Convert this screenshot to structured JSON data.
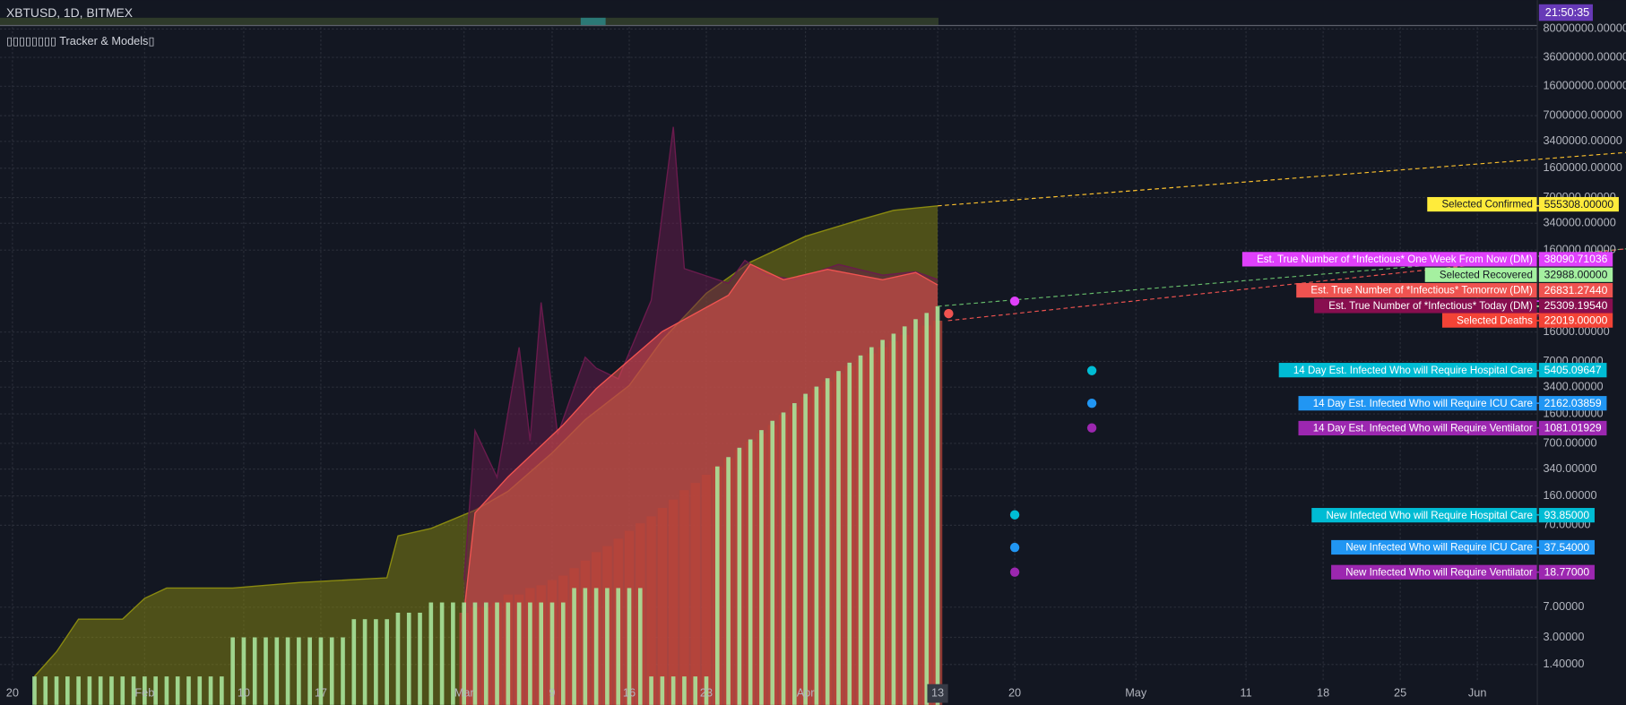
{
  "chart_data": {
    "type": "combo",
    "symbol": "XBTUSD, 1D, BITMEX",
    "title": "▯▯▯▯▯▯▯▯ Tracker & Models▯",
    "time": "21:50:35",
    "log_scale": true,
    "grid": true,
    "ylim": [
      0.45,
      180000000
    ],
    "yticks": [
      {
        "value": 1.4,
        "label": "1.40000"
      },
      {
        "value": 3,
        "label": "3.00000"
      },
      {
        "value": 7,
        "label": "7.00000"
      },
      {
        "value": 70,
        "label": "70.00000"
      },
      {
        "value": 160,
        "label": "160.00000"
      },
      {
        "value": 340,
        "label": "340.00000"
      },
      {
        "value": 700,
        "label": "700.00000"
      },
      {
        "value": 1600,
        "label": "1600.00000"
      },
      {
        "value": 3400,
        "label": "3400.00000"
      },
      {
        "value": 7000,
        "label": "7000.00000"
      },
      {
        "value": 16000,
        "label": "16000.00000"
      },
      {
        "value": 160000,
        "label": "160000.00000"
      },
      {
        "value": 340000,
        "label": "340000.00000"
      },
      {
        "value": 700000,
        "label": "700000.00000"
      },
      {
        "value": 1600000,
        "label": "1600000.00000"
      },
      {
        "value": 3400000,
        "label": "3400000.00000"
      },
      {
        "value": 7000000,
        "label": "7000000.00000"
      },
      {
        "value": 16000000,
        "label": "16000000.00000"
      },
      {
        "value": 36000000,
        "label": "36000000.00000"
      },
      {
        "value": 80000000,
        "label": "80000000.00000"
      }
    ],
    "xlim": [
      -1.13,
      138.4
    ],
    "xticks": [
      {
        "value": 0,
        "label": "20"
      },
      {
        "value": 12,
        "label": "Feb"
      },
      {
        "value": 21,
        "label": "10"
      },
      {
        "value": 28,
        "label": "17"
      },
      {
        "value": 41,
        "label": "Mar"
      },
      {
        "value": 49,
        "label": "9"
      },
      {
        "value": 56,
        "label": "16"
      },
      {
        "value": 63,
        "label": "23"
      },
      {
        "value": 72,
        "label": "Apr"
      },
      {
        "value": 84,
        "label": "13"
      },
      {
        "value": 91,
        "label": "20"
      },
      {
        "value": 102,
        "label": "May"
      },
      {
        "value": 112,
        "label": "11"
      },
      {
        "value": 119,
        "label": "18"
      },
      {
        "value": 126,
        "label": "25"
      },
      {
        "value": 133,
        "label": "Jun"
      }
    ],
    "series": [
      {
        "type": "area",
        "color": "#8a8a10",
        "x": [
          2,
          4,
          6,
          10,
          12,
          14,
          20,
          26,
          34,
          35,
          38,
          42,
          45,
          49,
          52,
          56,
          59,
          63,
          67,
          72,
          77,
          80,
          84
        ],
        "values": [
          1,
          2,
          5,
          5,
          9,
          12,
          12,
          14,
          16,
          52,
          64,
          107,
          182,
          535,
          1360,
          3560,
          12800,
          47500,
          114000,
          236000,
          377000,
          490000,
          555308
        ]
      },
      {
        "type": "area",
        "color": "#6a1b4d",
        "x": [
          41,
          42,
          44,
          46,
          47,
          48,
          49.5,
          52,
          53,
          55,
          58,
          60,
          61,
          65,
          66.5,
          68.5,
          71,
          75,
          79,
          82,
          84
        ],
        "values": [
          15,
          1000,
          270,
          10400,
          750,
          36800,
          900,
          7900,
          5800,
          4300,
          39000,
          5100000,
          95000,
          63000,
          120000,
          79000,
          70000,
          107000,
          79000,
          87000,
          70000
        ]
      },
      {
        "type": "area",
        "color": "#ef5350",
        "x": [
          41,
          42,
          45,
          50,
          53,
          59,
          65,
          67,
          70,
          74,
          79,
          82,
          84
        ],
        "values": [
          6,
          99,
          274,
          1175,
          3259,
          16200,
          44900,
          108000,
          69500,
          93100,
          69500,
          85300,
          60100
        ]
      },
      {
        "type": "bar",
        "color": "#b8443a",
        "x": [
          41,
          42,
          43,
          44,
          45,
          46,
          47,
          48,
          49,
          50,
          51,
          52,
          53,
          54,
          55,
          56,
          57,
          58,
          59,
          60,
          61,
          62,
          63,
          64,
          65,
          66,
          67,
          68,
          69,
          70,
          71,
          72,
          73,
          74,
          75,
          76,
          77,
          78,
          79,
          80,
          81,
          82,
          83,
          84
        ],
        "values": [
          6,
          7,
          7,
          8,
          10,
          10,
          12,
          13,
          15,
          17,
          21,
          26,
          33,
          39,
          48,
          60,
          74,
          90,
          114,
          144,
          188,
          230,
          290,
          366,
          462,
          584,
          738,
          931,
          1175,
          1575,
          1987,
          2583,
          3259,
          4000,
          5048,
          6196,
          7381,
          8778,
          10450,
          12449,
          14830,
          17178,
          19281,
          22019
        ]
      },
      {
        "type": "bar",
        "color": "#a8e39a",
        "x": [
          2,
          3,
          4,
          5,
          6,
          7,
          8,
          9,
          10,
          11,
          12,
          13,
          14,
          15,
          16,
          17,
          18,
          19,
          20,
          21,
          22,
          23,
          24,
          25,
          26,
          27,
          28,
          29,
          30,
          31,
          32,
          33,
          34,
          35,
          36,
          37,
          38,
          39,
          40,
          41,
          42,
          43,
          44,
          45,
          46,
          47,
          48,
          49,
          50,
          51,
          52,
          53,
          54,
          55,
          56,
          57,
          58,
          59,
          60,
          61,
          62,
          63,
          64,
          65,
          66,
          67,
          68,
          69,
          70,
          71,
          72,
          73,
          74,
          75,
          76,
          77,
          78,
          79,
          80,
          81,
          82,
          83,
          84
        ],
        "values": [
          1,
          1,
          1,
          1,
          1,
          1,
          1,
          1,
          1,
          1,
          1,
          1,
          1,
          1,
          1,
          1,
          1,
          1,
          3,
          3,
          3,
          3,
          3,
          3,
          3,
          3,
          3,
          3,
          3,
          5,
          5,
          5,
          5,
          6,
          6,
          6,
          8,
          8,
          8,
          8,
          8,
          8,
          8,
          8,
          8,
          8,
          8,
          8,
          8,
          12,
          12,
          12,
          12,
          12,
          12,
          12,
          1,
          1,
          1,
          1,
          1,
          1,
          366,
          476,
          619,
          782,
          1016,
          1321,
          1668,
          2168,
          2820,
          3452,
          4364,
          5347,
          6763,
          8282,
          10450,
          12827,
          15280,
          18746,
          22968,
          27353,
          32988
        ]
      }
    ],
    "labels": {
      "names": [
        "Selected Confirmed",
        "Est. True Number of *Infectious* One Week From Now (DM)",
        "Selected Recovered",
        "Est. True Number of *Infectious* Tomorrow (DM)",
        "Est. True Number of *Infectious* Today (DM)",
        "Selected Deaths",
        "14 Day Est. Infected Who will Require Hospital Care",
        "14 Day Est. Infected Who will Require ICU Care",
        "14 Day Est. Infected Who will Require Ventilator",
        "New Infected Who will Require Hospital Care",
        "New Infected Who will Require ICU Care",
        "New Infected Who will Require Ventilator"
      ],
      "values": [
        555308,
        38090.71036,
        32988,
        26831.2744,
        25309.1954,
        22019,
        5405.09647,
        2162.03859,
        1081.01929,
        93.85,
        37.54,
        18.77
      ],
      "value_labels": [
        "555308.00000",
        "38090.71036",
        "32988.00000",
        "26831.27440",
        "25309.19540",
        "22019.00000",
        "5405.09647",
        "2162.03859",
        "1081.01929",
        "93.85000",
        "37.54000",
        "18.77000"
      ],
      "colors": [
        "#ffeb3b",
        "#e040fb",
        "#a5f0a0",
        "#ef5350",
        "#880e4f",
        "#f44336",
        "#00bcd4",
        "#2196f3",
        "#9c27b0",
        "#00bcd4",
        "#2196f3",
        "#9c27b0"
      ]
    }
  }
}
